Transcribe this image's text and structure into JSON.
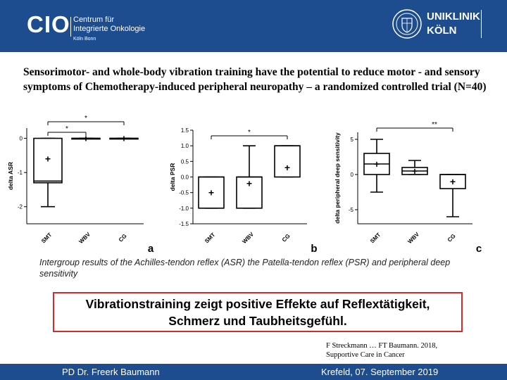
{
  "header": {
    "cio_logo": {
      "abbr": "CIO",
      "line1": "Centrum für",
      "line2": "Integrierte Onkologie",
      "city": "Köln Bonn"
    },
    "uk_logo": {
      "line1": "UNIKLINIK",
      "line2": "KÖLN"
    },
    "colors": {
      "band": "#1d4d8f",
      "text": "#ffffff"
    }
  },
  "title": "Sensorimotor- and whole-body vibration training have the potential to reduce motor - and sensory symptoms of Chemotherapy-induced peripheral neuropathy – a randomized controlled trial (N=40)",
  "chart_data": [
    {
      "type": "box",
      "panel_label": "a",
      "ylabel": "delta ASR",
      "categories": [
        "SMT",
        "WBV",
        "CG"
      ],
      "ylim": [
        -2.5,
        0.3
      ],
      "yticks": [
        "0",
        "-1",
        "-2"
      ],
      "boxes": [
        {
          "min": -2.0,
          "q1": -1.3,
          "median": -1.25,
          "q3": 0.0,
          "max": 0.0,
          "mean": -0.6
        },
        {
          "min": 0.0,
          "q1": 0.0,
          "median": 0.0,
          "q3": 0.0,
          "max": 0.0,
          "mean": 0.0
        },
        {
          "min": 0.0,
          "q1": 0.0,
          "median": 0.0,
          "q3": 0.0,
          "max": 0.0,
          "mean": 0.0
        }
      ],
      "significance": [
        {
          "from": "SMT",
          "to": "WBV",
          "label": "*"
        },
        {
          "from": "SMT",
          "to": "CG",
          "label": "*"
        }
      ]
    },
    {
      "type": "box",
      "panel_label": "b",
      "ylabel": "delta PSR",
      "categories": [
        "SMT",
        "WBV",
        "CG"
      ],
      "ylim": [
        -1.5,
        1.5
      ],
      "yticks": [
        "1.5",
        "1.0",
        "0.5",
        "0.0",
        "-0.5",
        "-1.0",
        "-1.5"
      ],
      "boxes": [
        {
          "min": -1.0,
          "q1": -1.0,
          "median": 0.0,
          "q3": 0.0,
          "max": 0.0,
          "mean": -0.5
        },
        {
          "min": -1.0,
          "q1": -1.0,
          "median": 0.0,
          "q3": 0.0,
          "max": 1.0,
          "mean": -0.2
        },
        {
          "min": 0.0,
          "q1": 0.0,
          "median": 1.0,
          "q3": 1.0,
          "max": 1.0,
          "mean": 0.3
        }
      ],
      "significance": [
        {
          "from": "SMT",
          "to": "CG",
          "label": "*"
        }
      ]
    },
    {
      "type": "box",
      "panel_label": "c",
      "ylabel": "delta peripheral deep sensitivity",
      "categories": [
        "SMT",
        "WBV",
        "CG"
      ],
      "ylim": [
        -7,
        6
      ],
      "yticks": [
        "5",
        "0",
        "-5"
      ],
      "boxes": [
        {
          "min": -2.5,
          "q1": 0.0,
          "median": 1.5,
          "q3": 3.0,
          "max": 5.0,
          "mean": 1.5
        },
        {
          "min": 0.0,
          "q1": 0.0,
          "median": 0.5,
          "q3": 1.0,
          "max": 2.0,
          "mean": 0.5
        },
        {
          "min": -6.0,
          "q1": -2.0,
          "median": 0.0,
          "q3": 0.0,
          "max": 0.0,
          "mean": -1.0
        }
      ],
      "significance": [
        {
          "from": "SMT",
          "to": "CG",
          "label": "**"
        }
      ]
    }
  ],
  "caption": "Intergroup results of the Achilles-tendon reflex (ASR) the Patella-tendon reflex (PSR) and peripheral deep sensitivity",
  "highlight": {
    "line1": "Vibrationstraining zeigt positive Effekte auf Reflextätigkeit,",
    "line2": "Schmerz und Taubheitsgefühl.",
    "border_color": "#d22b2b"
  },
  "citation": {
    "line1": "F Streckmann … FT Baumann. 2018,",
    "line2": "Supportive Care in Cancer"
  },
  "footer": {
    "left": "PD Dr. Freerk Baumann",
    "right": "Krefeld, 07. September 2019"
  }
}
